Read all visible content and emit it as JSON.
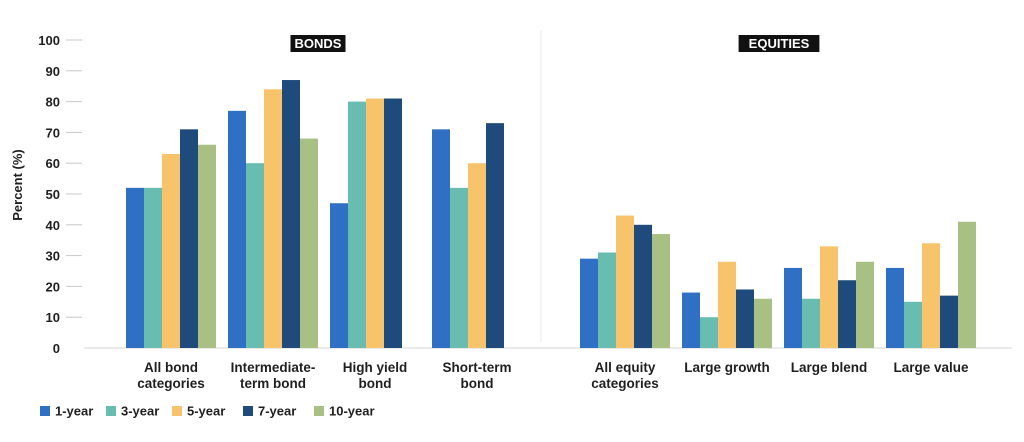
{
  "chart_data": {
    "type": "bar",
    "ylabel": "Percent (%)",
    "ylim": [
      0,
      100
    ],
    "yticks": [
      0,
      10,
      20,
      30,
      40,
      50,
      60,
      70,
      80,
      90,
      100
    ],
    "grid": false,
    "legend_position": "bottom-left",
    "panels": [
      {
        "title": "BONDS",
        "categories": [
          [
            "All bond",
            "categories"
          ],
          [
            "Intermediate-",
            "term bond"
          ],
          [
            "High yield",
            "bond"
          ],
          [
            "Short-term",
            "bond"
          ]
        ]
      },
      {
        "title": "EQUITIES",
        "categories": [
          [
            "All equity",
            "categories"
          ],
          [
            "Large growth"
          ],
          [
            "Large blend"
          ],
          [
            "Large value"
          ]
        ]
      }
    ],
    "series": [
      {
        "name": "1-year",
        "color": "#2f6fc4",
        "values": [
          52,
          77,
          47,
          71,
          29,
          18,
          26,
          26
        ]
      },
      {
        "name": "3-year",
        "color": "#69bcb0",
        "values": [
          52,
          60,
          80,
          52,
          31,
          10,
          16,
          15
        ]
      },
      {
        "name": "5-year",
        "color": "#f7c46c",
        "values": [
          63,
          84,
          81,
          60,
          43,
          28,
          33,
          34
        ]
      },
      {
        "name": "7-year",
        "color": "#1f4a7c",
        "values": [
          71,
          87,
          81,
          73,
          40,
          19,
          22,
          17
        ]
      },
      {
        "name": "10-year",
        "color": "#a8c084",
        "values": [
          66,
          68,
          null,
          null,
          37,
          16,
          28,
          41
        ]
      }
    ]
  }
}
